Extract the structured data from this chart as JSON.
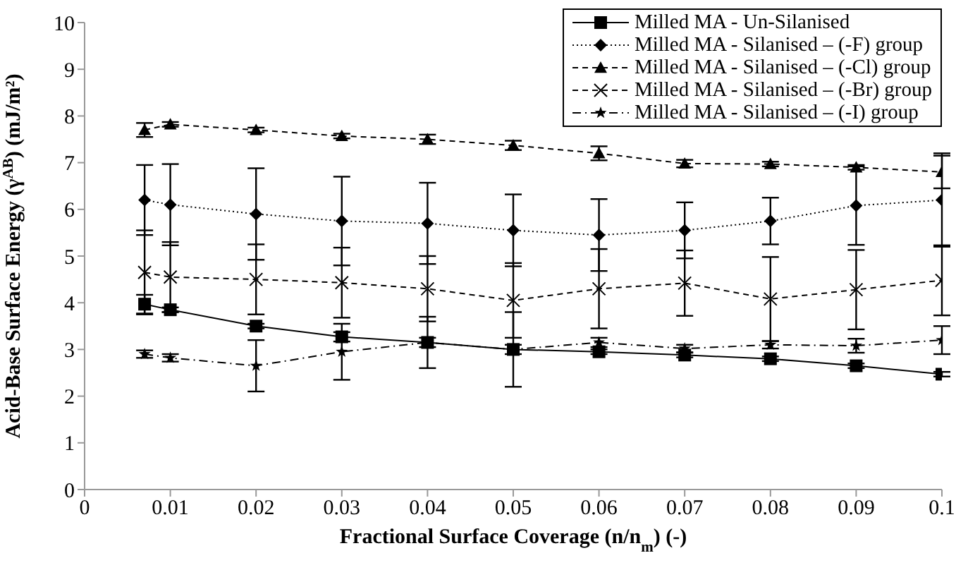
{
  "chart_data": {
    "type": "line",
    "xlabel": "Fractional Surface Coverage (n/n$_{m}$) (-)",
    "ylabel": "Acid-Base Surface Energy (γ$^{AB}$) (mJ/m²)",
    "x": [
      0.007,
      0.01,
      0.02,
      0.03,
      0.04,
      0.05,
      0.06,
      0.07,
      0.08,
      0.09,
      0.1
    ],
    "xlim": [
      0,
      0.1
    ],
    "xticks": [
      0,
      0.01,
      0.02,
      0.03,
      0.04,
      0.05,
      0.06,
      0.07,
      0.08,
      0.09,
      0.1
    ],
    "ylim": [
      0,
      10
    ],
    "yticks": [
      0,
      1,
      2,
      3,
      4,
      5,
      6,
      7,
      8,
      9,
      10
    ],
    "grid": false,
    "legend": "top right",
    "series": [
      {
        "name": "Milled MA - Un-Silanised",
        "color": "#000000",
        "marker": "square",
        "line_style": "solid",
        "values": [
          3.97,
          3.85,
          3.5,
          3.27,
          3.15,
          3.0,
          2.95,
          2.88,
          2.8,
          2.65,
          2.47
        ],
        "errors": [
          0.2,
          0.05,
          0.05,
          0.1,
          0.1,
          0.1,
          0.05,
          0.05,
          0.05,
          0.05,
          0.05
        ]
      },
      {
        "name": "Milled MA - Silanised – (-F) group",
        "color": "#000000",
        "marker": "diamond",
        "line_style": "dotted",
        "values": [
          6.2,
          6.1,
          5.9,
          5.75,
          5.7,
          5.55,
          5.45,
          5.55,
          5.75,
          6.08,
          6.2
        ],
        "errors": [
          0.75,
          0.87,
          0.98,
          0.95,
          0.87,
          0.77,
          0.77,
          0.6,
          0.5,
          0.84,
          1.0
        ]
      },
      {
        "name": "Milled MA - Silanised – (-Cl) group",
        "color": "#000000",
        "marker": "triangle",
        "line_style": "dashed",
        "values": [
          7.7,
          7.82,
          7.7,
          7.57,
          7.5,
          7.37,
          7.2,
          6.98,
          6.97,
          6.9,
          6.8
        ],
        "errors": [
          0.15,
          0.05,
          0.05,
          0.05,
          0.1,
          0.1,
          0.15,
          0.08,
          0.05,
          0.05,
          0.35
        ]
      },
      {
        "name": "Milled MA - Silanised – (-Br) group",
        "color": "#000000",
        "marker": "cross",
        "line_style": "dashed",
        "values": [
          4.65,
          4.55,
          4.5,
          4.43,
          4.3,
          4.05,
          4.3,
          4.42,
          4.08,
          4.28,
          4.48
        ],
        "errors": [
          0.9,
          0.75,
          0.75,
          0.75,
          0.7,
          0.8,
          0.85,
          0.7,
          0.9,
          0.85,
          0.75
        ]
      },
      {
        "name": "Milled MA - Silanised – (-I) group",
        "color": "#000000",
        "marker": "star",
        "line_style": "dashdot",
        "values": [
          2.9,
          2.82,
          2.65,
          2.95,
          3.15,
          3.0,
          3.15,
          3.02,
          3.1,
          3.08,
          3.2
        ],
        "errors": [
          0.08,
          0.08,
          0.55,
          0.6,
          0.55,
          0.8,
          0.1,
          0.08,
          0.08,
          0.15,
          0.3
        ]
      }
    ]
  }
}
